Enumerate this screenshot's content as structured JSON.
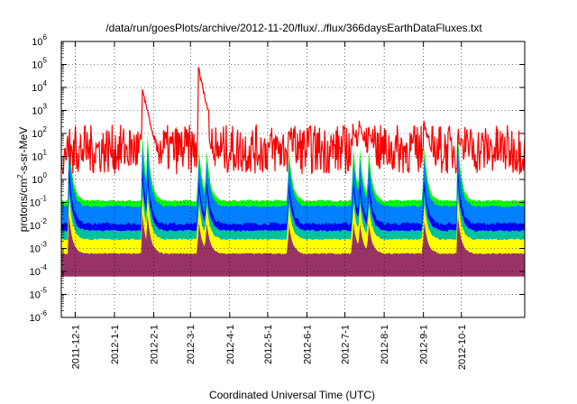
{
  "chart_data": {
    "type": "area",
    "title": "/data/run/goesPlots/archive/2012-11-20/flux/../flux/366daysEarthDataFluxes.txt",
    "xlabel": "Coordinated Universal Time (UTC)",
    "ylabel_parts": {
      "base": "protons/cm",
      "sup": "2",
      "tail": "-s-sr-MeV"
    },
    "yscale": "log",
    "ylim": [
      1e-06,
      1000000.0
    ],
    "y_exponents": [
      -6,
      -5,
      -4,
      -3,
      -2,
      -1,
      0,
      1,
      2,
      3,
      4,
      5,
      6
    ],
    "x_range": [
      "2011-11-20",
      "2012-11-20"
    ],
    "x_ticks": [
      "2011-12-1",
      "2012-1-1",
      "2012-2-1",
      "2012-3-1",
      "2012-4-1",
      "2012-5-1",
      "2012-6-1",
      "2012-7-1",
      "2012-8-1",
      "2012-9-1",
      "2012-10-1"
    ],
    "grid": true,
    "series": [
      {
        "color": "#ff0000",
        "baseline": 20,
        "noise": 0.45
      },
      {
        "color": "#00ff00",
        "baseline": 0.12,
        "noise": 0.05
      },
      {
        "color": "#0080ff",
        "baseline": 0.07,
        "noise": 0.05
      },
      {
        "color": "#0000ff",
        "baseline": 0.012,
        "noise": 0.08
      },
      {
        "color": "#00c0a0",
        "baseline": 0.006,
        "noise": 0.05
      },
      {
        "color": "#ffff00",
        "baseline": 0.0025,
        "noise": 0.04
      },
      {
        "color": "#993366",
        "baseline": 0.0006,
        "noise": 0.03
      }
    ],
    "events": [
      {
        "date": "2011-11-26",
        "peak_red": 8
      },
      {
        "date": "2012-1-23",
        "peak_red": 10000
      },
      {
        "date": "2012-1-27",
        "peak_red": 1000
      },
      {
        "date": "2012-3-7",
        "peak_red": 100000
      },
      {
        "date": "2012-3-13",
        "peak_red": 300
      },
      {
        "date": "2012-5-17",
        "peak_red": 200
      },
      {
        "date": "2012-7-7",
        "peak_red": 300
      },
      {
        "date": "2012-7-12",
        "peak_red": 500
      },
      {
        "date": "2012-7-19",
        "peak_red": 300
      },
      {
        "date": "2012-9-1",
        "peak_red": 500
      },
      {
        "date": "2012-9-28",
        "peak_red": 100
      }
    ]
  }
}
